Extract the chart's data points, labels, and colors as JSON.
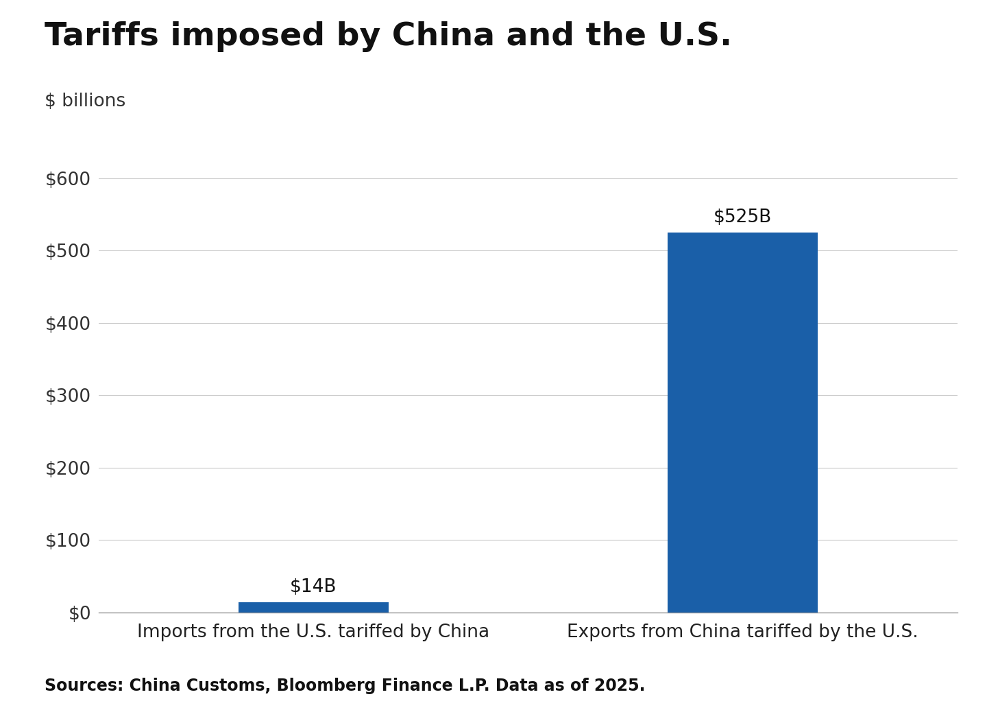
{
  "title": "Tariffs imposed by China and the U.S.",
  "subtitle": "$ billions",
  "categories": [
    "Imports from the U.S. tariffed by China",
    "Exports from China tariffed by the U.S."
  ],
  "values": [
    14,
    525
  ],
  "bar_labels": [
    "$14B",
    "$525B"
  ],
  "bar_color": "#1a5fa8",
  "ylim": [
    0,
    600
  ],
  "yticks": [
    0,
    100,
    200,
    300,
    400,
    500,
    600
  ],
  "ytick_labels": [
    "$0",
    "$100",
    "$200",
    "$300",
    "$400",
    "$500",
    "$600"
  ],
  "source_text": "Sources: China Customs, Bloomberg Finance L.P. Data as of 2025.",
  "background_color": "#ffffff",
  "grid_color": "#cccccc",
  "title_fontsize": 34,
  "subtitle_fontsize": 19,
  "tick_fontsize": 19,
  "label_fontsize": 19,
  "bar_label_fontsize": 19,
  "source_fontsize": 17
}
